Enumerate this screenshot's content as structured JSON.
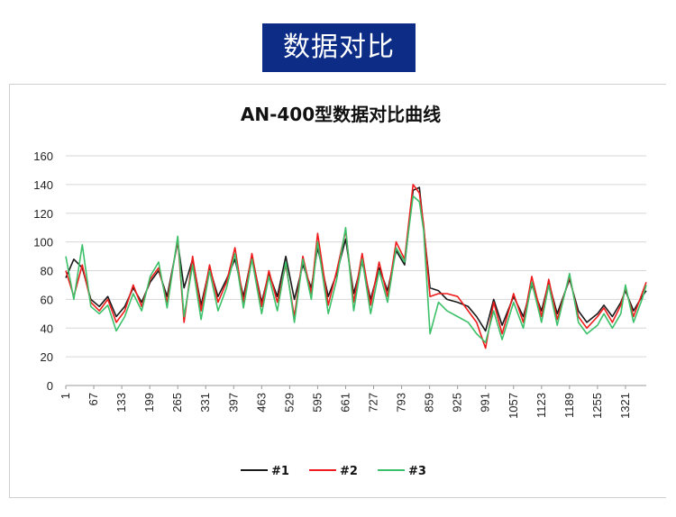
{
  "banner": {
    "title": "数据对比"
  },
  "chart_data": {
    "type": "line",
    "title": "AN-400型数据对比曲线",
    "xlabel": "",
    "ylabel": "",
    "ylim": [
      0,
      160
    ],
    "yticks": [
      0,
      20,
      40,
      60,
      80,
      100,
      120,
      140,
      160
    ],
    "xlim": [
      1,
      1370
    ],
    "xticks": [
      1,
      67,
      133,
      199,
      265,
      331,
      397,
      463,
      529,
      595,
      661,
      727,
      793,
      859,
      925,
      991,
      1057,
      1123,
      1189,
      1255,
      1321
    ],
    "grid": true,
    "legend": "bottom",
    "series": [
      {
        "name": "#1",
        "color": "#1a1a1a",
        "x": [
          1,
          20,
          40,
          60,
          80,
          100,
          120,
          140,
          160,
          180,
          200,
          220,
          240,
          265,
          280,
          300,
          320,
          340,
          360,
          380,
          400,
          420,
          440,
          463,
          480,
          500,
          520,
          540,
          560,
          580,
          595,
          620,
          640,
          661,
          680,
          700,
          720,
          740,
          760,
          780,
          800,
          820,
          835,
          845,
          860,
          880,
          900,
          925,
          950,
          970,
          991,
          1010,
          1030,
          1057,
          1080,
          1100,
          1123,
          1140,
          1160,
          1189,
          1210,
          1230,
          1255,
          1270,
          1290,
          1310,
          1321,
          1340,
          1360,
          1370
        ],
        "values": [
          75,
          88,
          82,
          60,
          55,
          62,
          48,
          55,
          68,
          58,
          72,
          80,
          62,
          100,
          68,
          88,
          56,
          82,
          62,
          74,
          88,
          62,
          90,
          58,
          78,
          62,
          90,
          60,
          84,
          68,
          96,
          62,
          78,
          102,
          64,
          86,
          60,
          82,
          66,
          94,
          84,
          136,
          138,
          110,
          68,
          66,
          60,
          58,
          55,
          48,
          38,
          60,
          42,
          62,
          48,
          70,
          52,
          72,
          50,
          74,
          52,
          44,
          50,
          56,
          48,
          58,
          66,
          52,
          62,
          66
        ]
      },
      {
        "name": "#2",
        "color": "#ee1c1c",
        "x": [
          1,
          20,
          40,
          60,
          80,
          100,
          120,
          140,
          160,
          180,
          200,
          220,
          240,
          265,
          280,
          300,
          320,
          340,
          360,
          380,
          400,
          420,
          440,
          463,
          480,
          500,
          520,
          540,
          560,
          580,
          595,
          620,
          640,
          661,
          680,
          700,
          720,
          740,
          760,
          780,
          800,
          820,
          835,
          845,
          860,
          880,
          900,
          925,
          950,
          970,
          991,
          1010,
          1030,
          1057,
          1080,
          1100,
          1123,
          1140,
          1160,
          1189,
          1210,
          1230,
          1255,
          1270,
          1290,
          1310,
          1321,
          1340,
          1360,
          1370
        ],
        "values": [
          80,
          62,
          84,
          58,
          52,
          60,
          44,
          52,
          70,
          55,
          74,
          82,
          58,
          102,
          44,
          90,
          52,
          84,
          58,
          72,
          96,
          58,
          92,
          55,
          80,
          58,
          84,
          48,
          90,
          64,
          106,
          56,
          80,
          108,
          58,
          92,
          56,
          86,
          62,
          100,
          88,
          140,
          134,
          112,
          62,
          64,
          64,
          62,
          52,
          44,
          26,
          58,
          36,
          64,
          44,
          76,
          48,
          74,
          46,
          76,
          48,
          40,
          48,
          54,
          44,
          56,
          68,
          48,
          64,
          72
        ]
      },
      {
        "name": "#3",
        "color": "#3cc06a",
        "x": [
          1,
          20,
          40,
          60,
          80,
          100,
          120,
          140,
          160,
          180,
          200,
          220,
          240,
          265,
          280,
          300,
          320,
          340,
          360,
          380,
          400,
          420,
          440,
          463,
          480,
          500,
          520,
          540,
          560,
          580,
          595,
          620,
          640,
          661,
          680,
          700,
          720,
          740,
          760,
          780,
          800,
          820,
          835,
          845,
          860,
          880,
          900,
          925,
          950,
          970,
          991,
          1010,
          1030,
          1057,
          1080,
          1100,
          1123,
          1140,
          1160,
          1189,
          1210,
          1230,
          1255,
          1270,
          1290,
          1310,
          1321,
          1340,
          1360,
          1370
        ],
        "values": [
          90,
          60,
          98,
          55,
          50,
          56,
          38,
          48,
          64,
          52,
          76,
          86,
          54,
          104,
          48,
          84,
          46,
          80,
          52,
          68,
          92,
          54,
          88,
          50,
          76,
          52,
          86,
          44,
          88,
          60,
          100,
          50,
          74,
          110,
          52,
          88,
          50,
          80,
          58,
          96,
          86,
          132,
          128,
          108,
          36,
          58,
          52,
          48,
          44,
          36,
          30,
          52,
          32,
          58,
          40,
          72,
          44,
          70,
          42,
          78,
          44,
          36,
          42,
          50,
          40,
          50,
          70,
          44,
          60,
          70
        ]
      }
    ]
  }
}
